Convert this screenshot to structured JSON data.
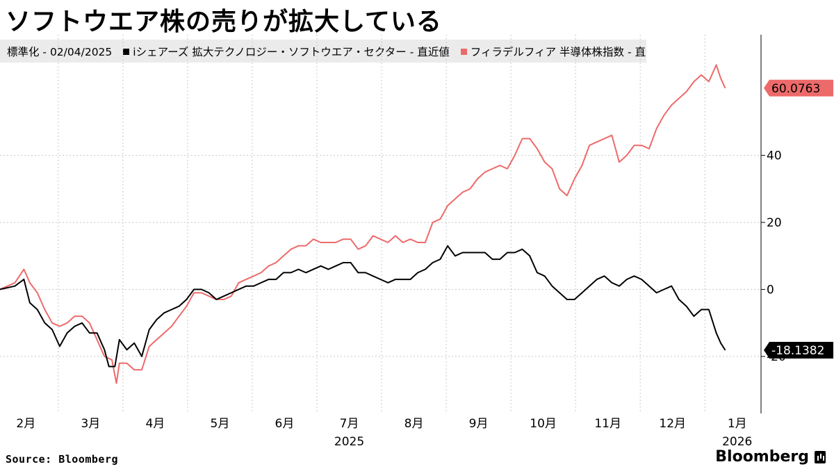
{
  "title": "ソフトウエア株の売りが拡大している",
  "legend": {
    "prefix": "標準化 - 02/04/2025",
    "series1": "iシェアーズ 拡大テクノロジー・ソフトウエア・セクター - 直近値",
    "series2": "フィラデルフィア 半導体株指数 - 直近値"
  },
  "source": "Source:  Bloomberg",
  "brand": "Bloomberg",
  "colors": {
    "series1": "#000000",
    "series2": "#ed6a6a",
    "grid": "#c8c8c8",
    "legend_bg": "#ebebeb"
  },
  "chart_data": {
    "type": "line",
    "title": "ソフトウエア株の売りが拡大している",
    "ylim": [
      -37,
      76
    ],
    "y_ticks": [
      -20,
      0,
      20,
      40
    ],
    "y_tick_labels": [
      "-20",
      "0",
      "20",
      "40"
    ],
    "grid": true,
    "months": [
      "2月",
      "3月",
      "4月",
      "5月",
      "6月",
      "7月",
      "8月",
      "9月",
      "10月",
      "11月",
      "12月",
      "1月"
    ],
    "years": [
      {
        "label": "2025",
        "month_index": 5
      },
      {
        "label": "2026",
        "month_index": 11
      }
    ],
    "x_unit": "weeks since 2025-02-04",
    "series": [
      {
        "name": "iシェアーズ 拡大テクノロジー・ソフトウエア・セクター - 直近値",
        "color": "#000000",
        "last_label": "-18.1382",
        "points": [
          [
            0,
            0
          ],
          [
            1,
            1
          ],
          [
            1.6,
            3
          ],
          [
            2,
            -4
          ],
          [
            2.5,
            -6
          ],
          [
            3,
            -10
          ],
          [
            3.5,
            -12
          ],
          [
            4,
            -17
          ],
          [
            4.5,
            -13
          ],
          [
            5,
            -11
          ],
          [
            5.5,
            -10
          ],
          [
            6,
            -13
          ],
          [
            6.5,
            -13
          ],
          [
            7,
            -18
          ],
          [
            7.3,
            -23
          ],
          [
            7.7,
            -23
          ],
          [
            8,
            -15
          ],
          [
            8.5,
            -18
          ],
          [
            9,
            -16
          ],
          [
            9.5,
            -20
          ],
          [
            10,
            -12
          ],
          [
            10.5,
            -9
          ],
          [
            11,
            -7
          ],
          [
            11.5,
            -6
          ],
          [
            12,
            -5
          ],
          [
            12.5,
            -3
          ],
          [
            13,
            0
          ],
          [
            13.5,
            0
          ],
          [
            14,
            -1
          ],
          [
            14.5,
            -3
          ],
          [
            15,
            -2
          ],
          [
            15.5,
            -1
          ],
          [
            16,
            0
          ],
          [
            16.5,
            1
          ],
          [
            17,
            1
          ],
          [
            17.5,
            2
          ],
          [
            18,
            3
          ],
          [
            18.5,
            3
          ],
          [
            19,
            5
          ],
          [
            19.5,
            5
          ],
          [
            20,
            6
          ],
          [
            20.5,
            5
          ],
          [
            21,
            6
          ],
          [
            21.5,
            7
          ],
          [
            22,
            6
          ],
          [
            22.5,
            7
          ],
          [
            23,
            8
          ],
          [
            23.5,
            8
          ],
          [
            24,
            5
          ],
          [
            24.5,
            5
          ],
          [
            25,
            4
          ],
          [
            25.5,
            3
          ],
          [
            26,
            2
          ],
          [
            26.5,
            3
          ],
          [
            27,
            3
          ],
          [
            27.5,
            3
          ],
          [
            28,
            5
          ],
          [
            28.5,
            6
          ],
          [
            29,
            8
          ],
          [
            29.5,
            9
          ],
          [
            30,
            13
          ],
          [
            30.5,
            10
          ],
          [
            31,
            11
          ],
          [
            31.5,
            11
          ],
          [
            32,
            11
          ],
          [
            32.5,
            11
          ],
          [
            33,
            9
          ],
          [
            33.5,
            9
          ],
          [
            34,
            11
          ],
          [
            34.5,
            11
          ],
          [
            35,
            12
          ],
          [
            35.5,
            10
          ],
          [
            36,
            5
          ],
          [
            36.5,
            4
          ],
          [
            37,
            1
          ],
          [
            37.5,
            -1
          ],
          [
            38,
            -3
          ],
          [
            38.5,
            -3
          ],
          [
            39,
            -1
          ],
          [
            39.5,
            1
          ],
          [
            40,
            3
          ],
          [
            40.5,
            4
          ],
          [
            41,
            2
          ],
          [
            41.5,
            1
          ],
          [
            42,
            3
          ],
          [
            42.5,
            4
          ],
          [
            43,
            3
          ],
          [
            43.5,
            1
          ],
          [
            44,
            -1
          ],
          [
            44.5,
            0
          ],
          [
            45,
            1
          ],
          [
            45.5,
            -3
          ],
          [
            46,
            -5
          ],
          [
            46.5,
            -8
          ],
          [
            47,
            -6
          ],
          [
            47.5,
            -6
          ],
          [
            48,
            -13
          ],
          [
            48.3,
            -16
          ],
          [
            48.6,
            -18.1382
          ]
        ]
      },
      {
        "name": "フィラデルフィア 半導体株指数 - 直近値",
        "color": "#ed6a6a",
        "last_label": "60.0763",
        "points": [
          [
            0,
            0
          ],
          [
            1,
            2
          ],
          [
            1.6,
            6
          ],
          [
            2,
            2
          ],
          [
            2.5,
            -1
          ],
          [
            3,
            -6
          ],
          [
            3.5,
            -10
          ],
          [
            4,
            -11
          ],
          [
            4.5,
            -10
          ],
          [
            5,
            -8
          ],
          [
            5.5,
            -8
          ],
          [
            6,
            -10
          ],
          [
            6.5,
            -15
          ],
          [
            7,
            -20
          ],
          [
            7.5,
            -21
          ],
          [
            7.8,
            -28
          ],
          [
            8,
            -22
          ],
          [
            8.5,
            -22
          ],
          [
            9,
            -24
          ],
          [
            9.5,
            -24
          ],
          [
            10,
            -17
          ],
          [
            10.5,
            -15
          ],
          [
            11,
            -13
          ],
          [
            11.5,
            -11
          ],
          [
            12,
            -8
          ],
          [
            12.5,
            -5
          ],
          [
            13,
            -1
          ],
          [
            13.5,
            -1
          ],
          [
            14,
            -2
          ],
          [
            14.5,
            -3
          ],
          [
            15,
            -3
          ],
          [
            15.5,
            -2
          ],
          [
            16,
            2
          ],
          [
            16.5,
            3
          ],
          [
            17,
            4
          ],
          [
            17.5,
            5
          ],
          [
            18,
            7
          ],
          [
            18.5,
            8
          ],
          [
            19,
            10
          ],
          [
            19.5,
            12
          ],
          [
            20,
            13
          ],
          [
            20.5,
            13
          ],
          [
            21,
            15
          ],
          [
            21.5,
            14
          ],
          [
            22,
            14
          ],
          [
            22.5,
            14
          ],
          [
            23,
            15
          ],
          [
            23.5,
            15
          ],
          [
            24,
            12
          ],
          [
            24.5,
            13
          ],
          [
            25,
            16
          ],
          [
            25.5,
            15
          ],
          [
            26,
            14
          ],
          [
            26.5,
            16
          ],
          [
            27,
            14
          ],
          [
            27.5,
            15
          ],
          [
            28,
            14
          ],
          [
            28.5,
            14
          ],
          [
            29,
            20
          ],
          [
            29.5,
            21
          ],
          [
            30,
            25
          ],
          [
            30.5,
            27
          ],
          [
            31,
            29
          ],
          [
            31.5,
            30
          ],
          [
            32,
            33
          ],
          [
            32.5,
            35
          ],
          [
            33,
            36
          ],
          [
            33.5,
            37
          ],
          [
            34,
            36
          ],
          [
            34.5,
            40
          ],
          [
            35,
            45
          ],
          [
            35.5,
            45
          ],
          [
            36,
            42
          ],
          [
            36.5,
            38
          ],
          [
            37,
            36
          ],
          [
            37.5,
            30
          ],
          [
            38,
            28
          ],
          [
            38.5,
            33
          ],
          [
            39,
            37
          ],
          [
            39.5,
            43
          ],
          [
            40,
            44
          ],
          [
            40.5,
            45
          ],
          [
            41,
            46
          ],
          [
            41.5,
            38
          ],
          [
            42,
            40
          ],
          [
            42.5,
            43
          ],
          [
            43,
            43
          ],
          [
            43.5,
            42
          ],
          [
            44,
            48
          ],
          [
            44.5,
            52
          ],
          [
            45,
            55
          ],
          [
            45.5,
            57
          ],
          [
            46,
            59
          ],
          [
            46.5,
            62
          ],
          [
            47,
            64
          ],
          [
            47.5,
            62
          ],
          [
            48,
            67
          ],
          [
            48.3,
            63
          ],
          [
            48.6,
            60.0763
          ]
        ]
      }
    ]
  }
}
